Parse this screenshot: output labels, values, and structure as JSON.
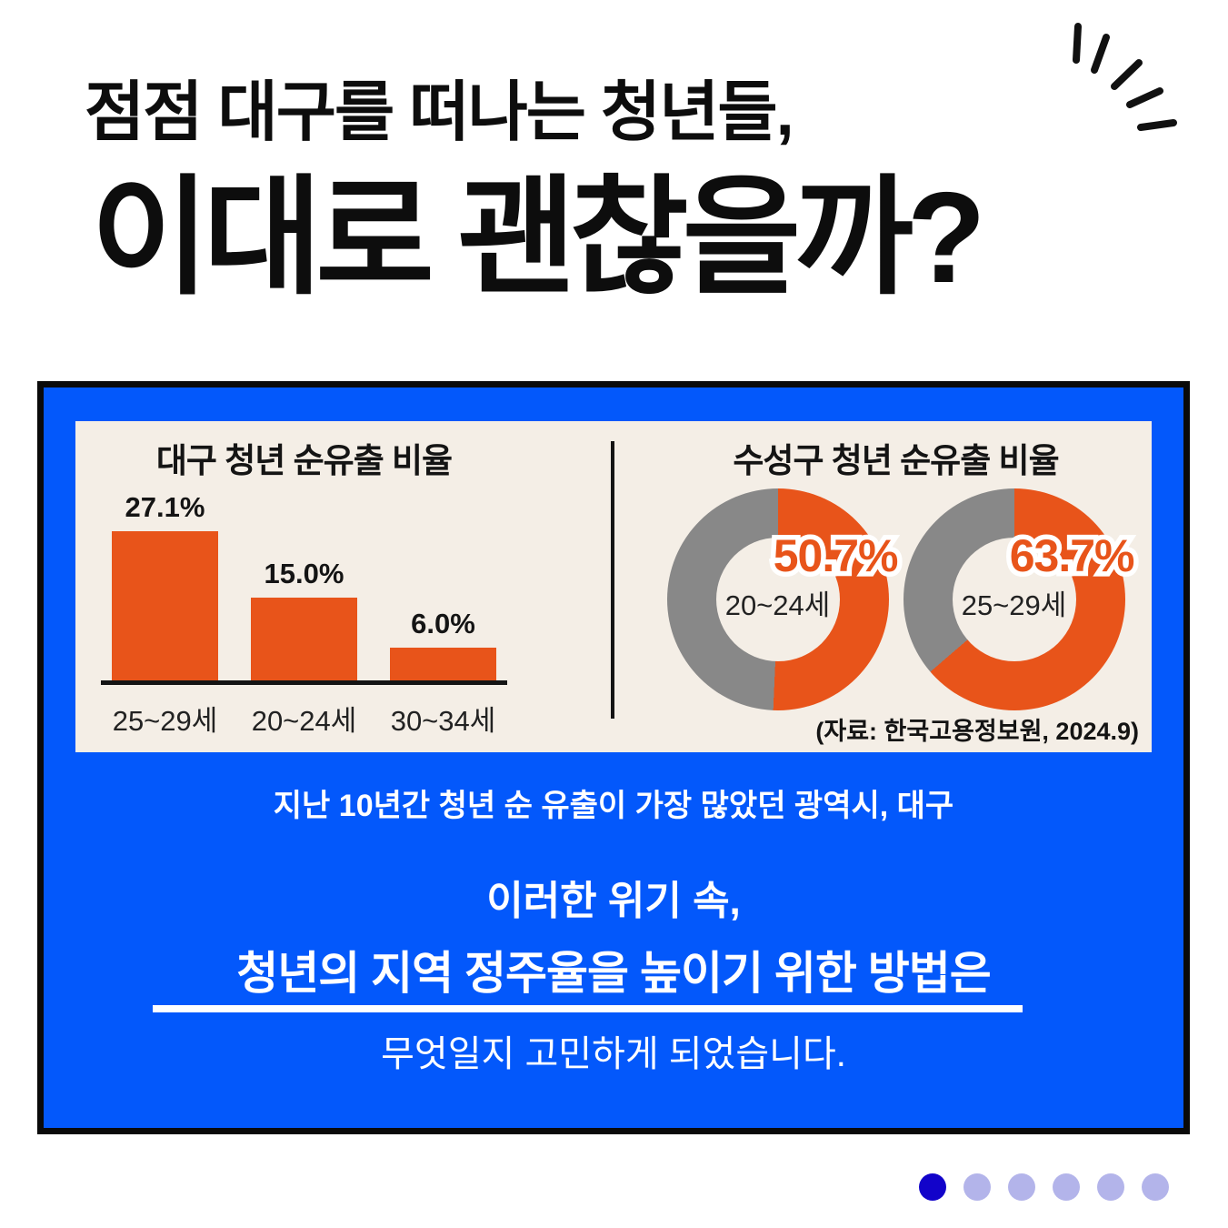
{
  "header": {
    "subtitle": "점점 대구를 떠나는 청년들,",
    "title": "이대로 괜찮을까?"
  },
  "chart_data": [
    {
      "type": "bar",
      "title": "대구 청년 순유출 비율",
      "categories": [
        "25~29세",
        "20~24세",
        "30~34세"
      ],
      "values": [
        27.1,
        15.0,
        6.0
      ],
      "value_labels": [
        "27.1%",
        "15.0%",
        "6.0%"
      ],
      "ylim": [
        0,
        30
      ],
      "xlabel": "",
      "ylabel": "",
      "grid": false,
      "legend": false,
      "bar_color": "#E8541A"
    },
    {
      "type": "donut",
      "title": "수성구 청년 순유출 비율",
      "donuts": [
        {
          "label": "20~24세",
          "value": 50.7,
          "value_label": "50.7%"
        },
        {
          "label": "25~29세",
          "value": 63.7,
          "value_label": "63.7%"
        }
      ],
      "filled_color": "#E8541A",
      "remainder_color": "#888888",
      "start_angle": "top, clockwise",
      "source": "(자료: 한국고용정보원, 2024.9)"
    }
  ],
  "body": {
    "caption": "지난 10년간 청년 순 유출이 가장 많았던 광역시, 대구",
    "emphasis_intro": "이러한 위기 속,",
    "emphasis_main": "청년의 지역 정주율을 높이기 위한 방법은",
    "emphasis_tail": "무엇일지 고민하게 되었습니다."
  },
  "pagination": {
    "total": 6,
    "active_index": 0
  },
  "colors": {
    "panel_blue": "#0358FB",
    "accent_orange": "#E8541A",
    "donut_gray": "#888888",
    "card_cream": "#F4EEE6",
    "dot_active": "#1203CA",
    "dot_inactive": "#B3B4EA"
  }
}
